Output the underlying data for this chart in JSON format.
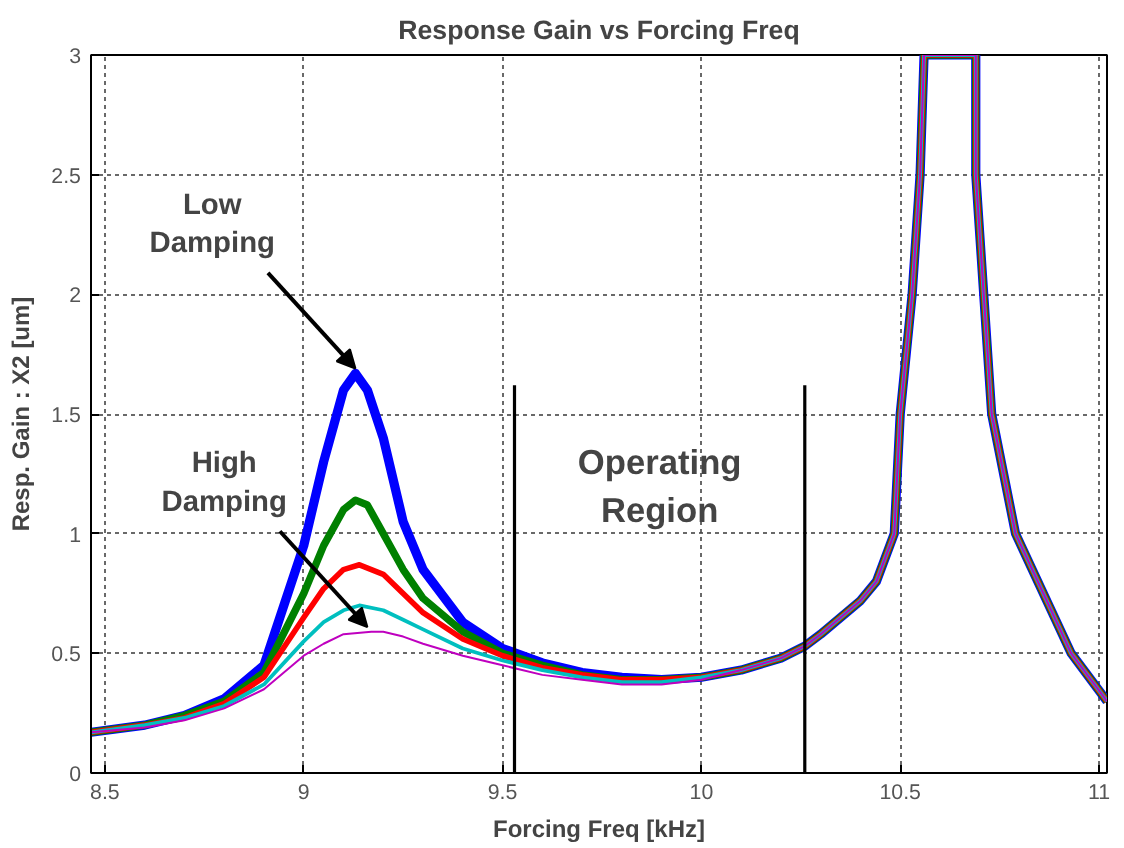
{
  "chart_data": {
    "type": "line",
    "title": "Response Gain vs Forcing Freq",
    "xlabel": "Forcing Freq [kHz]",
    "ylabel": "Resp. Gain : X2 [um]",
    "xlim": [
      8.465,
      11.02
    ],
    "ylim": [
      0,
      3
    ],
    "xticks": [
      8.5,
      9,
      9.5,
      10,
      10.5,
      11
    ],
    "yticks": [
      0,
      0.5,
      1,
      1.5,
      2,
      2.5,
      3
    ],
    "grid": true,
    "line_style": "solid",
    "marker": "none",
    "annotations": [
      {
        "text": "Low\nDamping",
        "x": 9.13,
        "y": 1.67
      },
      {
        "text": "High\nDamping",
        "x": 9.16,
        "y": 0.59
      },
      "Operating\nRegion"
    ],
    "series": [
      {
        "color": "#0000ff",
        "x": [
          8.465,
          8.6,
          8.7,
          8.8,
          8.9,
          9.0,
          9.05,
          9.1,
          9.13,
          9.16,
          9.2,
          9.25,
          9.3,
          9.4,
          9.5,
          9.6,
          9.7,
          9.8,
          9.9,
          10.0,
          10.1,
          10.2,
          10.26,
          10.3,
          10.4,
          10.44,
          10.485,
          10.5,
          10.53,
          10.55,
          10.56,
          10.69,
          10.69,
          10.71,
          10.73,
          10.79,
          10.93,
          11.02
        ],
        "values": [
          0.17,
          0.2,
          0.24,
          0.31,
          0.45,
          0.95,
          1.3,
          1.6,
          1.67,
          1.6,
          1.4,
          1.05,
          0.85,
          0.63,
          0.52,
          0.46,
          0.42,
          0.4,
          0.39,
          0.4,
          0.43,
          0.48,
          0.53,
          0.58,
          0.72,
          0.8,
          1.0,
          1.5,
          2.0,
          2.5,
          3.0,
          3.0,
          2.5,
          2.0,
          1.5,
          1.0,
          0.5,
          0.3
        ]
      },
      {
        "color": "#008000",
        "x": [
          8.465,
          8.6,
          8.7,
          8.8,
          8.9,
          9.0,
          9.05,
          9.1,
          9.13,
          9.16,
          9.2,
          9.25,
          9.3,
          9.4,
          9.5,
          9.6,
          9.7,
          9.8,
          9.9,
          10.0,
          10.1,
          10.2,
          10.26,
          10.3,
          10.4,
          10.44,
          10.485,
          10.5,
          10.53,
          10.55,
          10.56,
          10.69,
          10.69,
          10.71,
          10.73,
          10.79,
          10.93,
          11.02
        ],
        "values": [
          0.17,
          0.2,
          0.24,
          0.3,
          0.42,
          0.75,
          0.95,
          1.1,
          1.14,
          1.12,
          1.0,
          0.85,
          0.73,
          0.59,
          0.5,
          0.45,
          0.41,
          0.39,
          0.39,
          0.4,
          0.43,
          0.48,
          0.53,
          0.58,
          0.72,
          0.8,
          1.0,
          1.5,
          2.0,
          2.5,
          3.0,
          3.0,
          2.5,
          2.0,
          1.5,
          1.0,
          0.5,
          0.3
        ]
      },
      {
        "color": "#ff0000",
        "x": [
          8.465,
          8.6,
          8.7,
          8.8,
          8.9,
          9.0,
          9.05,
          9.1,
          9.14,
          9.2,
          9.25,
          9.3,
          9.4,
          9.5,
          9.6,
          9.7,
          9.8,
          9.9,
          10.0,
          10.1,
          10.2,
          10.26,
          10.3,
          10.4,
          10.44,
          10.485,
          10.5,
          10.53,
          10.55,
          10.56,
          10.69,
          10.69,
          10.71,
          10.73,
          10.79,
          10.93,
          11.02
        ],
        "values": [
          0.17,
          0.2,
          0.23,
          0.29,
          0.4,
          0.65,
          0.77,
          0.85,
          0.87,
          0.83,
          0.75,
          0.67,
          0.56,
          0.49,
          0.44,
          0.41,
          0.39,
          0.39,
          0.4,
          0.43,
          0.48,
          0.53,
          0.58,
          0.72,
          0.8,
          1.0,
          1.5,
          2.0,
          2.5,
          3.0,
          3.0,
          2.5,
          2.0,
          1.5,
          1.0,
          0.5,
          0.3
        ]
      },
      {
        "color": "#00bfbf",
        "x": [
          8.465,
          8.6,
          8.7,
          8.8,
          8.9,
          9.0,
          9.05,
          9.1,
          9.14,
          9.2,
          9.25,
          9.3,
          9.4,
          9.5,
          9.6,
          9.7,
          9.8,
          9.9,
          10.0,
          10.1,
          10.2,
          10.26,
          10.3,
          10.4,
          10.44,
          10.485,
          10.5,
          10.53,
          10.55,
          10.56,
          10.69,
          10.69,
          10.71,
          10.73,
          10.79,
          10.93,
          11.02
        ],
        "values": [
          0.17,
          0.2,
          0.23,
          0.28,
          0.37,
          0.55,
          0.63,
          0.68,
          0.7,
          0.68,
          0.64,
          0.6,
          0.52,
          0.47,
          0.43,
          0.4,
          0.38,
          0.38,
          0.4,
          0.43,
          0.48,
          0.53,
          0.58,
          0.72,
          0.8,
          1.0,
          1.5,
          2.0,
          2.5,
          3.0,
          3.0,
          2.5,
          2.0,
          1.5,
          1.0,
          0.5,
          0.3
        ]
      },
      {
        "color": "#bf00bf",
        "x": [
          8.465,
          8.6,
          8.7,
          8.8,
          8.9,
          9.0,
          9.05,
          9.1,
          9.17,
          9.2,
          9.25,
          9.3,
          9.4,
          9.5,
          9.6,
          9.7,
          9.8,
          9.9,
          10.0,
          10.1,
          10.2,
          10.26,
          10.3,
          10.4,
          10.44,
          10.485,
          10.5,
          10.53,
          10.55,
          10.56,
          10.69,
          10.69,
          10.71,
          10.73,
          10.79,
          10.93,
          11.02
        ],
        "values": [
          0.17,
          0.19,
          0.22,
          0.27,
          0.35,
          0.49,
          0.54,
          0.58,
          0.59,
          0.59,
          0.57,
          0.54,
          0.49,
          0.45,
          0.41,
          0.39,
          0.37,
          0.37,
          0.39,
          0.43,
          0.48,
          0.53,
          0.58,
          0.72,
          0.8,
          1.0,
          1.5,
          2.0,
          2.5,
          3.0,
          3.0,
          2.5,
          2.0,
          1.5,
          1.0,
          0.5,
          0.3
        ]
      },
      {
        "color": "#000000",
        "x": [
          9.53,
          9.53
        ],
        "values": [
          0,
          1.62
        ]
      },
      {
        "color": "#000000",
        "x": [
          10.26,
          10.26
        ],
        "values": [
          0,
          1.62
        ]
      }
    ]
  }
}
